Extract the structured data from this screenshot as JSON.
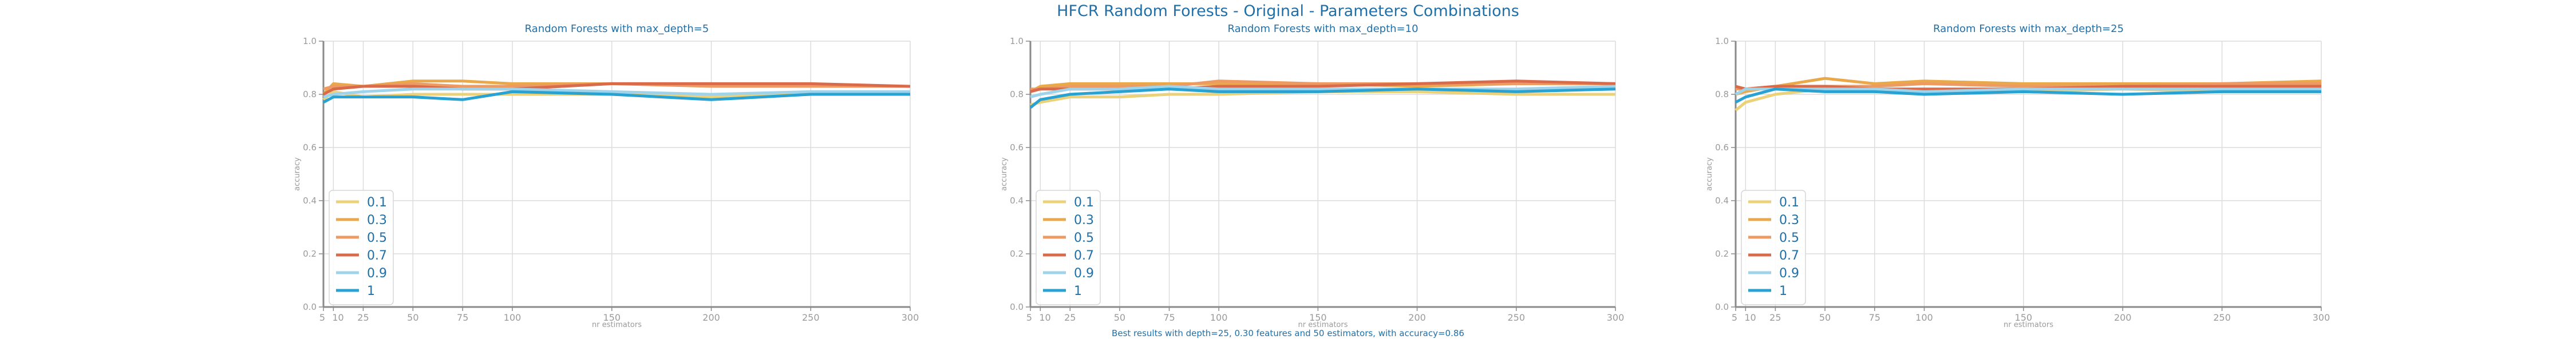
{
  "figure": {
    "title": "HFCR Random Forests - Original - Parameters Combinations",
    "footnote": "Best results with depth=25, 0.30 features and 50 estimators, with accuracy=0.86"
  },
  "colors": {
    "0.1": "#ead17a",
    "0.3": "#e9a94a",
    "0.5": "#ee9a63",
    "0.7": "#d96a4a",
    "0.9": "#9fd3ea",
    "1": "#27a2d2",
    "text": "#1f6fa8",
    "axis_text": "#9a9a9a",
    "grid": "#dcdcdc"
  },
  "chart_data": [
    {
      "type": "line",
      "title": "Random Forests with max_depth=5",
      "xlabel": "nr estimators",
      "ylabel": "accuracy",
      "x": [
        5,
        10,
        25,
        50,
        75,
        100,
        150,
        200,
        250,
        300
      ],
      "xticks": [
        "5",
        "10",
        "25",
        "50",
        "75",
        "100",
        "150",
        "200",
        "250",
        "300"
      ],
      "yticks": [
        "0.0",
        "0.2",
        "0.4",
        "0.6",
        "0.8",
        "1.0"
      ],
      "xlim": [
        5,
        300
      ],
      "ylim": [
        0,
        1
      ],
      "grid": true,
      "legend": "lower-left",
      "series": [
        {
          "name": "0.1",
          "values": [
            0.78,
            0.81,
            0.79,
            0.8,
            0.8,
            0.8,
            0.8,
            0.79,
            0.8,
            0.8
          ]
        },
        {
          "name": "0.3",
          "values": [
            0.8,
            0.84,
            0.83,
            0.85,
            0.85,
            0.84,
            0.84,
            0.84,
            0.83,
            0.83
          ]
        },
        {
          "name": "0.5",
          "values": [
            0.82,
            0.83,
            0.83,
            0.84,
            0.83,
            0.83,
            0.84,
            0.83,
            0.83,
            0.83
          ]
        },
        {
          "name": "0.7",
          "values": [
            0.8,
            0.82,
            0.83,
            0.83,
            0.82,
            0.82,
            0.84,
            0.84,
            0.84,
            0.83
          ]
        },
        {
          "name": "0.9",
          "values": [
            0.79,
            0.8,
            0.81,
            0.82,
            0.82,
            0.82,
            0.81,
            0.8,
            0.81,
            0.81
          ]
        },
        {
          "name": "1",
          "values": [
            0.77,
            0.79,
            0.79,
            0.79,
            0.78,
            0.81,
            0.8,
            0.78,
            0.8,
            0.8
          ]
        }
      ]
    },
    {
      "type": "line",
      "title": "Random Forests with max_depth=10",
      "xlabel": "nr estimators",
      "ylabel": "accuracy",
      "x": [
        5,
        10,
        25,
        50,
        75,
        100,
        150,
        200,
        250,
        300
      ],
      "xticks": [
        "5",
        "10",
        "25",
        "50",
        "75",
        "100",
        "150",
        "200",
        "250",
        "300"
      ],
      "yticks": [
        "0.0",
        "0.2",
        "0.4",
        "0.6",
        "0.8",
        "1.0"
      ],
      "xlim": [
        5,
        300
      ],
      "ylim": [
        0,
        1
      ],
      "grid": true,
      "legend": "lower-left",
      "series": [
        {
          "name": "0.1",
          "values": [
            0.76,
            0.77,
            0.79,
            0.79,
            0.8,
            0.8,
            0.81,
            0.81,
            0.8,
            0.8
          ]
        },
        {
          "name": "0.3",
          "values": [
            0.81,
            0.83,
            0.84,
            0.84,
            0.84,
            0.84,
            0.84,
            0.83,
            0.84,
            0.84
          ]
        },
        {
          "name": "0.5",
          "values": [
            0.82,
            0.82,
            0.83,
            0.83,
            0.83,
            0.85,
            0.84,
            0.84,
            0.84,
            0.84
          ]
        },
        {
          "name": "0.7",
          "values": [
            0.81,
            0.82,
            0.82,
            0.82,
            0.82,
            0.83,
            0.83,
            0.84,
            0.85,
            0.84
          ]
        },
        {
          "name": "0.9",
          "values": [
            0.79,
            0.8,
            0.82,
            0.82,
            0.83,
            0.82,
            0.82,
            0.82,
            0.82,
            0.83
          ]
        },
        {
          "name": "1",
          "values": [
            0.75,
            0.78,
            0.8,
            0.81,
            0.82,
            0.81,
            0.81,
            0.82,
            0.81,
            0.82
          ]
        }
      ]
    },
    {
      "type": "line",
      "title": "Random Forests with max_depth=25",
      "xlabel": "nr estimators",
      "ylabel": "accuracy",
      "x": [
        5,
        10,
        25,
        50,
        75,
        100,
        150,
        200,
        250,
        300
      ],
      "xticks": [
        "5",
        "10",
        "25",
        "50",
        "75",
        "100",
        "150",
        "200",
        "250",
        "300"
      ],
      "yticks": [
        "0.0",
        "0.2",
        "0.4",
        "0.6",
        "0.8",
        "1.0"
      ],
      "xlim": [
        5,
        300
      ],
      "ylim": [
        0,
        1
      ],
      "grid": true,
      "legend": "lower-left",
      "series": [
        {
          "name": "0.1",
          "values": [
            0.74,
            0.77,
            0.8,
            0.82,
            0.82,
            0.81,
            0.81,
            0.82,
            0.81,
            0.81
          ]
        },
        {
          "name": "0.3",
          "values": [
            0.8,
            0.81,
            0.83,
            0.86,
            0.84,
            0.85,
            0.84,
            0.84,
            0.84,
            0.85
          ]
        },
        {
          "name": "0.5",
          "values": [
            0.82,
            0.82,
            0.83,
            0.83,
            0.83,
            0.84,
            0.83,
            0.83,
            0.84,
            0.84
          ]
        },
        {
          "name": "0.7",
          "values": [
            0.83,
            0.82,
            0.83,
            0.83,
            0.82,
            0.82,
            0.82,
            0.83,
            0.83,
            0.83
          ]
        },
        {
          "name": "0.9",
          "values": [
            0.8,
            0.82,
            0.82,
            0.82,
            0.82,
            0.81,
            0.82,
            0.82,
            0.82,
            0.82
          ]
        },
        {
          "name": "1",
          "values": [
            0.77,
            0.79,
            0.82,
            0.81,
            0.81,
            0.8,
            0.81,
            0.8,
            0.81,
            0.81
          ]
        }
      ]
    }
  ]
}
